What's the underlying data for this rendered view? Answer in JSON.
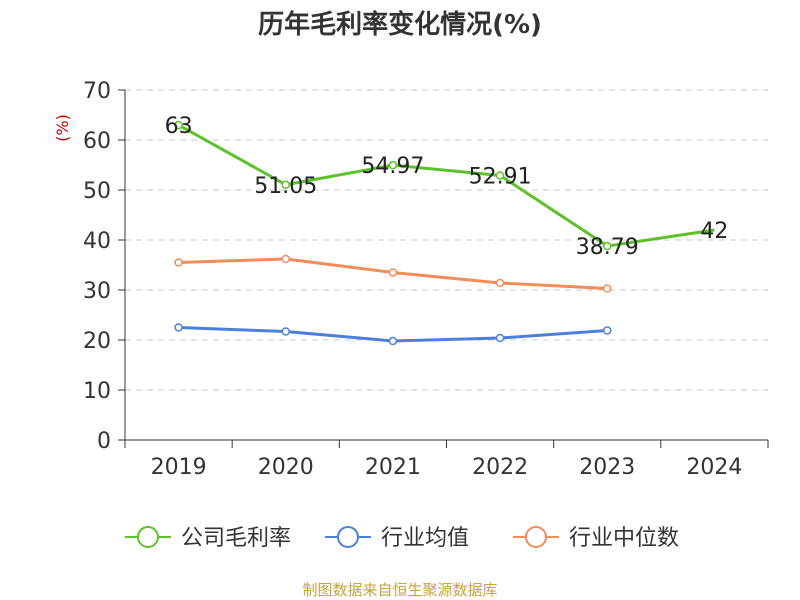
{
  "chart_data": {
    "type": "line",
    "title": "历年毛利率变化情况(%)",
    "ylabel": "(%)",
    "categories": [
      "2019",
      "2020",
      "2021",
      "2022",
      "2023",
      "2024"
    ],
    "ylim": [
      0,
      70
    ],
    "yticks": [
      "0",
      "10",
      "20",
      "30",
      "40",
      "50",
      "60",
      "70"
    ],
    "grid": true,
    "legend_position": "bottom",
    "series": [
      {
        "name": "公司毛利率",
        "color": "#5cc12a",
        "values": [
          63,
          51.05,
          54.97,
          52.91,
          38.79,
          42
        ],
        "labels": [
          "63",
          "51.05",
          "54.97",
          "52.91",
          "38.79",
          "42"
        ]
      },
      {
        "name": "行业均值",
        "color": "#4a7fdc",
        "values": [
          22.5,
          21.7,
          19.8,
          20.4,
          21.9,
          null
        ]
      },
      {
        "name": "行业中位数",
        "color": "#f28c5a",
        "values": [
          35.5,
          36.2,
          33.5,
          31.4,
          30.3,
          null
        ]
      }
    ]
  },
  "footer": {
    "source": "制图数据来自恒生聚源数据库"
  }
}
